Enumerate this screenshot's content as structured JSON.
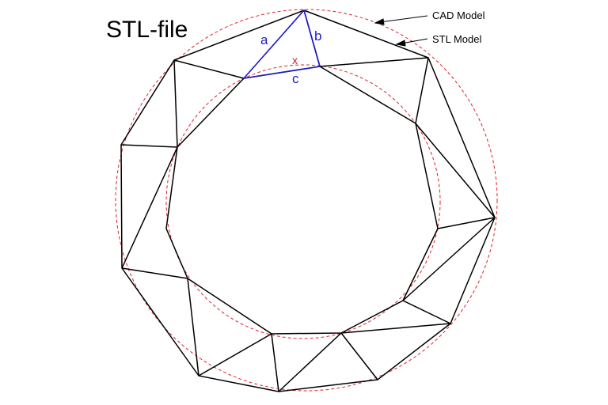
{
  "title": "STL-file",
  "callouts": {
    "cad_model": "CAD Model",
    "stl_model": "STL Model"
  },
  "triangle_labels": {
    "a": "a",
    "b": "b",
    "c": "c",
    "x": "x"
  },
  "colors": {
    "mesh_stroke": "#000000",
    "highlight_triangle": "#1a1acc",
    "cad_circle": "#e0202a",
    "x_label": "#d02020"
  }
}
